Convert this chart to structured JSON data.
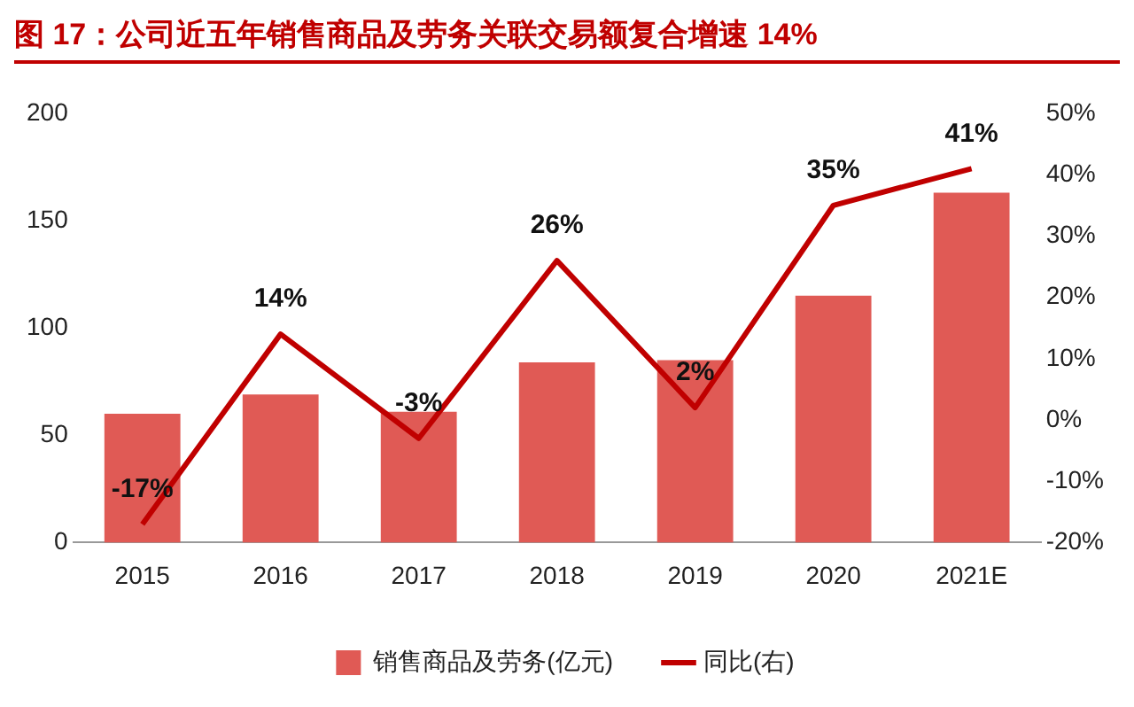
{
  "chart_data": {
    "type": "bar",
    "title": "图 17：公司近五年销售商品及劳务关联交易额复合增速 14%",
    "categories": [
      "2015",
      "2016",
      "2017",
      "2018",
      "2019",
      "2020",
      "2021E"
    ],
    "series": [
      {
        "name": "销售商品及劳务(亿元)",
        "color": "#e05a55",
        "values": [
          60,
          69,
          61,
          84,
          85,
          115,
          163
        ]
      },
      {
        "name": "同比(右)",
        "type": "line",
        "axis": "y2",
        "color": "#c00000",
        "values": [
          -17,
          14,
          -3,
          26,
          2,
          35,
          41
        ],
        "value_labels": [
          "-17%",
          "14%",
          "-3%",
          "26%",
          "2%",
          "35%",
          "41%"
        ]
      }
    ],
    "ylim": [
      0,
      200
    ],
    "yticks": [
      0,
      50,
      100,
      150,
      200
    ],
    "y2lim": [
      -20,
      50
    ],
    "y2ticks": [
      {
        "value": -20,
        "label": "-20%"
      },
      {
        "value": -10,
        "label": "-10%"
      },
      {
        "value": 0,
        "label": "0%"
      },
      {
        "value": 10,
        "label": "10%"
      },
      {
        "value": 20,
        "label": "20%"
      },
      {
        "value": 30,
        "label": "30%"
      },
      {
        "value": 40,
        "label": "40%"
      },
      {
        "value": 50,
        "label": "50%"
      }
    ],
    "legend": "bottom",
    "grid": false
  }
}
